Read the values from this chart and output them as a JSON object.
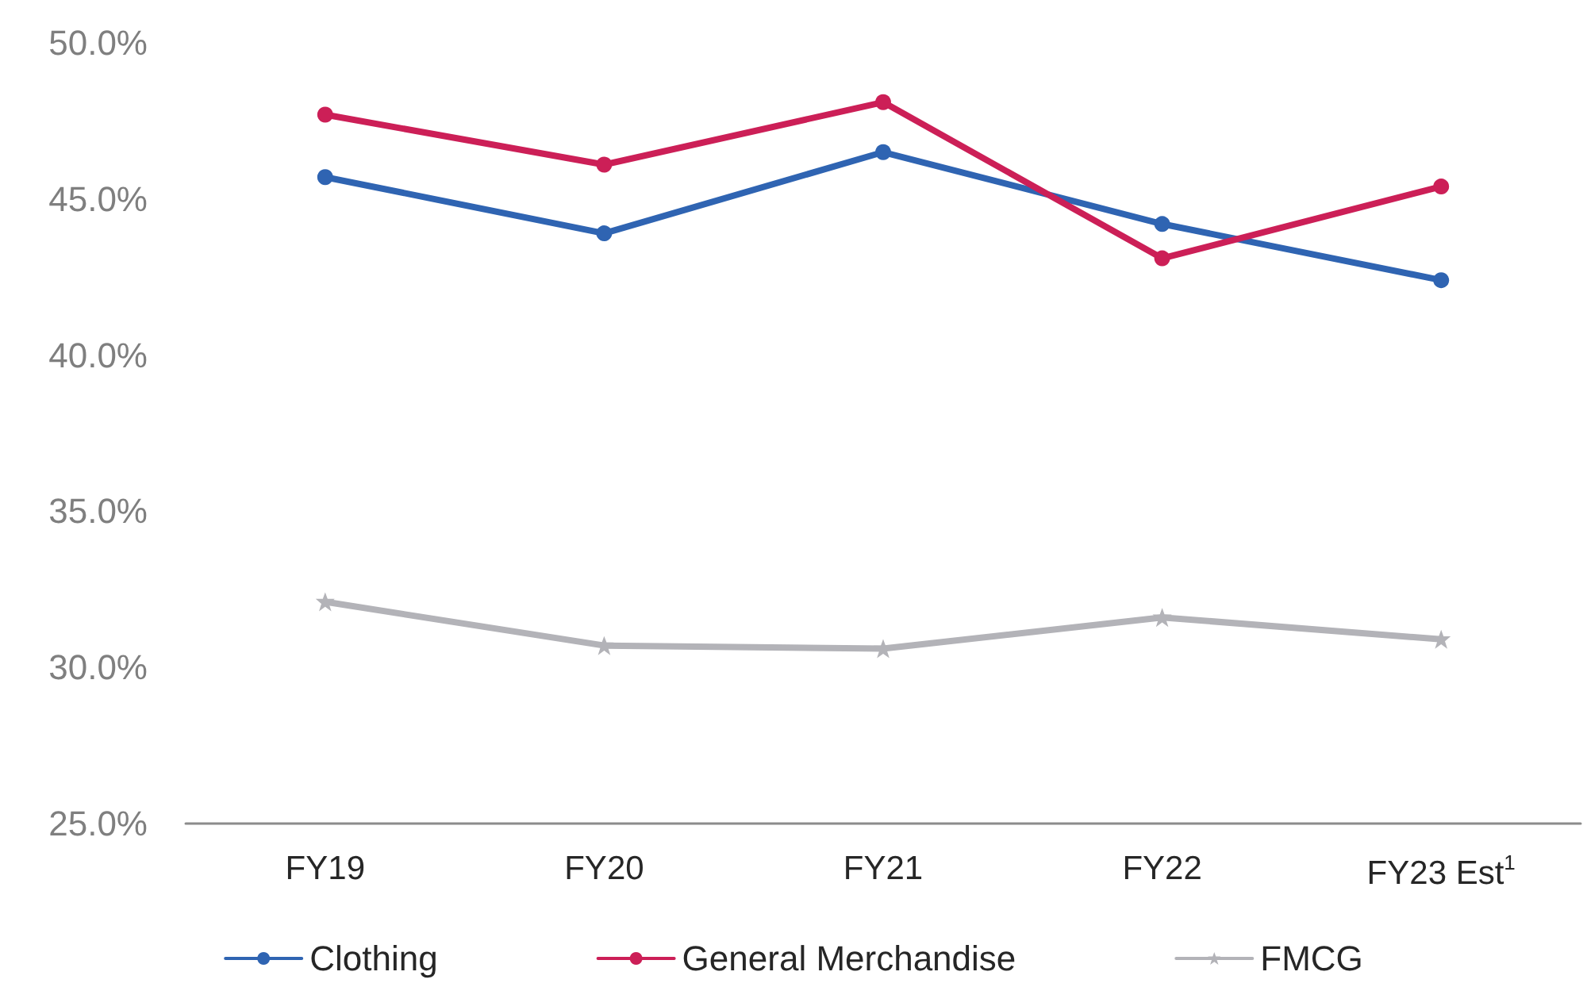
{
  "chart_data": {
    "type": "line",
    "categories": [
      "FY19",
      "FY20",
      "FY21",
      "FY22",
      "FY23 Est$^{1}$"
    ],
    "series": [
      {
        "name": "Clothing",
        "color": "#2f64b2",
        "marker": "circle",
        "values": [
          45.7,
          43.9,
          46.5,
          44.2,
          42.4
        ]
      },
      {
        "name": "General Merchandise",
        "color": "#cc1f57",
        "marker": "circle",
        "values": [
          47.7,
          46.1,
          48.1,
          43.1,
          45.4
        ]
      },
      {
        "name": "FMCG",
        "color": "#b3b3b8",
        "marker": "star",
        "values": [
          32.1,
          30.7,
          30.6,
          31.6,
          30.9
        ]
      }
    ],
    "ylim": [
      25,
      50
    ],
    "yticks": [
      {
        "value": 25,
        "label": "25.0%"
      },
      {
        "value": 30,
        "label": "30.0%"
      },
      {
        "value": 35,
        "label": "35.0%"
      },
      {
        "value": 40,
        "label": "40.0%"
      },
      {
        "value": 45,
        "label": "45.0%"
      },
      {
        "value": 50,
        "label": "50.0%"
      }
    ],
    "grid": false,
    "legend": "bottom",
    "line_style": "solid"
  }
}
